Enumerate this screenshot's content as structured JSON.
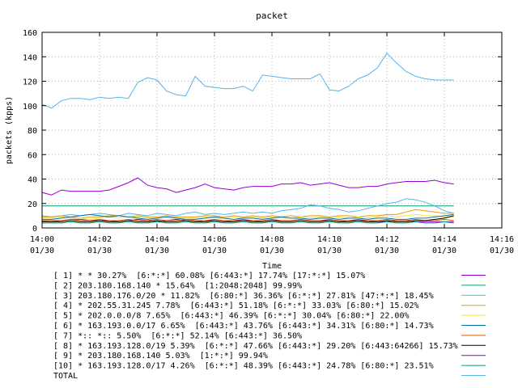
{
  "chart_data": {
    "type": "line",
    "title": "packet",
    "xlabel": "Time",
    "ylabel": "packets (kpps)",
    "ylim": [
      0,
      160
    ],
    "yticks": [
      0,
      20,
      40,
      60,
      80,
      100,
      120,
      140,
      160
    ],
    "xlim": [
      0,
      16
    ],
    "xticks": [
      {
        "minute": 0,
        "time": "14:00",
        "date": "01/30"
      },
      {
        "minute": 2,
        "time": "14:02",
        "date": "01/30"
      },
      {
        "minute": 4,
        "time": "14:04",
        "date": "01/30"
      },
      {
        "minute": 6,
        "time": "14:06",
        "date": "01/30"
      },
      {
        "minute": 8,
        "time": "14:08",
        "date": "01/30"
      },
      {
        "minute": 10,
        "time": "14:10",
        "date": "01/30"
      },
      {
        "minute": 12,
        "time": "14:12",
        "date": "01/30"
      },
      {
        "minute": 14,
        "time": "14:14",
        "date": "01/30"
      },
      {
        "minute": 16,
        "time": "14:16",
        "date": "01/30"
      }
    ],
    "x": [
      0,
      0.33,
      0.67,
      1,
      1.33,
      1.67,
      2,
      2.33,
      2.67,
      3,
      3.33,
      3.67,
      4,
      4.33,
      4.67,
      5,
      5.33,
      5.67,
      6,
      6.33,
      6.67,
      7,
      7.33,
      7.67,
      8,
      8.33,
      8.67,
      9,
      9.33,
      9.67,
      10,
      10.33,
      10.67,
      11,
      11.33,
      11.67,
      12,
      12.33,
      12.67,
      13,
      13.33,
      13.67,
      14,
      14.33
    ],
    "series": [
      {
        "name": "[ 1] * * 30.27%  [6:*:*] 60.08% [6:443:*] 17.74% [17:*:*] 15.07%",
        "color": "#9400d3",
        "values": [
          5.5,
          5,
          6,
          7,
          7,
          6,
          6,
          6,
          5,
          6,
          7,
          6,
          5,
          6,
          7,
          6,
          5,
          6,
          6,
          5,
          6,
          6,
          6,
          5,
          6,
          6,
          6,
          7,
          6,
          6,
          6,
          5,
          6,
          6,
          6,
          5,
          5,
          6,
          6,
          5,
          5,
          5,
          5,
          5
        ]
      },
      {
        "name": "[ 2] 203.180.168.140 * 15.64%  [1:2048:2048] 99.99%",
        "color": "#009e73",
        "values": [
          18,
          18,
          18,
          18,
          18,
          18,
          18,
          18,
          18,
          18,
          18,
          18,
          18,
          18,
          18,
          18,
          18,
          18,
          18,
          18,
          18,
          18,
          18,
          18,
          18,
          18,
          18,
          18,
          18,
          18,
          18,
          18,
          18,
          18,
          18,
          18,
          18,
          18,
          18,
          18,
          18,
          18,
          18,
          18
        ]
      },
      {
        "name": "[ 3] 203.180.176.0/20 * 11.82%  [6:80:*] 36.36% [6:*:*] 27.81% [47:*:*] 18.45%",
        "color": "#56b4e9",
        "values": [
          10,
          9,
          10,
          11,
          10,
          11,
          12,
          11,
          10,
          12,
          11,
          10,
          12,
          11,
          10,
          12,
          13,
          11,
          12,
          11,
          12,
          13,
          12,
          13,
          12,
          14,
          15,
          16,
          19,
          18,
          16,
          15,
          13,
          14,
          16,
          18,
          20,
          21,
          24,
          23,
          21,
          18,
          14,
          12
        ]
      },
      {
        "name": "[ 4] * 202.55.31.245 7.78%  [6:443:*] 51.18% [6:*:*] 33.03% [6:80:*] 15.02%",
        "color": "#e69f00",
        "values": [
          9,
          9,
          10,
          9,
          8,
          9,
          9,
          10,
          10,
          9,
          10,
          9,
          9,
          10,
          9,
          9,
          9,
          10,
          10,
          9,
          10,
          9,
          10,
          9,
          10,
          9,
          10,
          9,
          10,
          10,
          9,
          10,
          10,
          9,
          10,
          10,
          11,
          11,
          13,
          15,
          14,
          13,
          12,
          12
        ]
      },
      {
        "name": "[ 5] * 202.0.0.0/8 7.65%  [6:443:*] 46.39% [6:*:*] 30.04% [6:80:*] 22.00%",
        "color": "#f0e442",
        "values": [
          8,
          8,
          9,
          8,
          8,
          7,
          8,
          9,
          8,
          9,
          9,
          8,
          8,
          9,
          8,
          8,
          8,
          9,
          8,
          8,
          9,
          8,
          9,
          8,
          9,
          8,
          8,
          9,
          8,
          9,
          8,
          9,
          8,
          9,
          8,
          9,
          10,
          9,
          10,
          11,
          10,
          10,
          9,
          9
        ]
      },
      {
        "name": "[ 6] * 163.193.0.0/17 6.65%  [6:443:*] 43.76% [6:443:*] 34.31% [6:80:*] 14.73%",
        "color": "#0072b2",
        "values": [
          7,
          7,
          8,
          9,
          10,
          11,
          10,
          9,
          10,
          9,
          8,
          7,
          8,
          9,
          8,
          7,
          7,
          8,
          9,
          8,
          7,
          8,
          8,
          7,
          8,
          9,
          8,
          8,
          7,
          8,
          8,
          7,
          8,
          8,
          7,
          8,
          8,
          7,
          7,
          8,
          8,
          9,
          10,
          11
        ]
      },
      {
        "name": "[ 7] *:: *:: 5.50%  [6:*:*] 52.14% [6:443:*] 36.50%",
        "color": "#d55e00",
        "values": [
          6,
          6,
          6,
          7,
          6,
          6,
          7,
          6,
          6,
          7,
          6,
          6,
          7,
          6,
          6,
          7,
          6,
          6,
          7,
          6,
          6,
          7,
          6,
          6,
          7,
          6,
          6,
          7,
          6,
          6,
          7,
          6,
          6,
          7,
          6,
          6,
          7,
          6,
          6,
          7,
          6,
          6,
          7,
          6
        ]
      },
      {
        "name": "[ 8] * 163.193.128.0/19 5.39%  [6:*:*] 47.66% [6:443:*] 29.20% [6:443:64266] 15.73%",
        "color": "#000000",
        "values": [
          5,
          5,
          5,
          6,
          5,
          5,
          6,
          5,
          5,
          6,
          5,
          5,
          6,
          5,
          5,
          6,
          5,
          5,
          6,
          5,
          5,
          6,
          5,
          5,
          6,
          5,
          5,
          6,
          5,
          5,
          6,
          5,
          5,
          6,
          5,
          5,
          6,
          5,
          5,
          6,
          6,
          7,
          8,
          10
        ]
      },
      {
        "name": "[ 9] * 203.180.168.140 5.03%  [1:*:*] 99.94%",
        "color": "#9400d3",
        "values": [
          29,
          27,
          31,
          30,
          30,
          30,
          30,
          31,
          34,
          37,
          41,
          35,
          33,
          32,
          29,
          31,
          33,
          36,
          33,
          32,
          31,
          33,
          34,
          34,
          34,
          36,
          36,
          37,
          35,
          36,
          37,
          35,
          33,
          33,
          34,
          34,
          36,
          37,
          38,
          38,
          38,
          39,
          37,
          36
        ]
      },
      {
        "name": "[10] * 163.193.128.0/17 4.26%  [6:*:*] 48.39% [6:443:*] 24.78% [6:80:*] 23.51%",
        "color": "#009e73",
        "values": [
          4,
          4,
          4,
          5,
          4,
          4,
          5,
          4,
          4,
          5,
          4,
          4,
          5,
          4,
          4,
          5,
          4,
          4,
          5,
          4,
          4,
          5,
          4,
          4,
          5,
          4,
          4,
          5,
          4,
          4,
          5,
          4,
          4,
          5,
          4,
          4,
          5,
          4,
          4,
          5,
          4,
          4,
          5,
          4
        ]
      },
      {
        "name": "TOTAL",
        "color": "#56b4e9",
        "values": [
          101,
          98,
          104,
          106,
          106,
          105,
          107,
          106,
          107,
          106,
          119,
          123,
          121,
          112,
          109,
          108,
          124,
          116,
          115,
          114,
          114,
          116,
          112,
          125,
          124,
          123,
          122,
          122,
          122,
          126,
          113,
          112,
          116,
          122,
          125,
          131,
          143,
          135,
          128,
          124,
          122,
          121,
          121,
          121
        ]
      }
    ]
  }
}
